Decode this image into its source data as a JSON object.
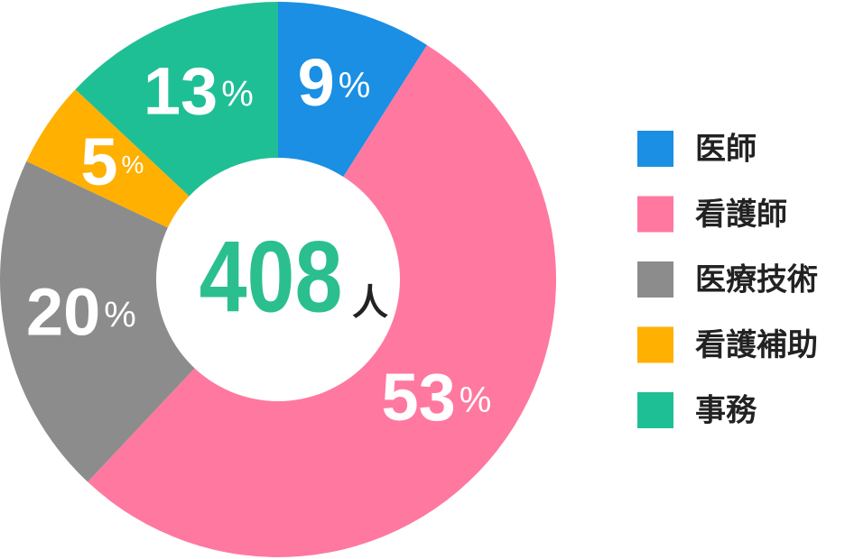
{
  "chart_data": {
    "type": "donut",
    "categories": [
      "医師",
      "看護師",
      "医療技術",
      "看護補助",
      "事務"
    ],
    "values": [
      9,
      53,
      20,
      5,
      13
    ],
    "value_labels": [
      "9%",
      "53%",
      "20%",
      "5%",
      "13%"
    ],
    "colors": [
      "#1a8fe3",
      "#ff78a0",
      "#8c8c8c",
      "#ffb000",
      "#1fbf96"
    ],
    "total": 408,
    "total_unit": "人",
    "legend": "right"
  }
}
